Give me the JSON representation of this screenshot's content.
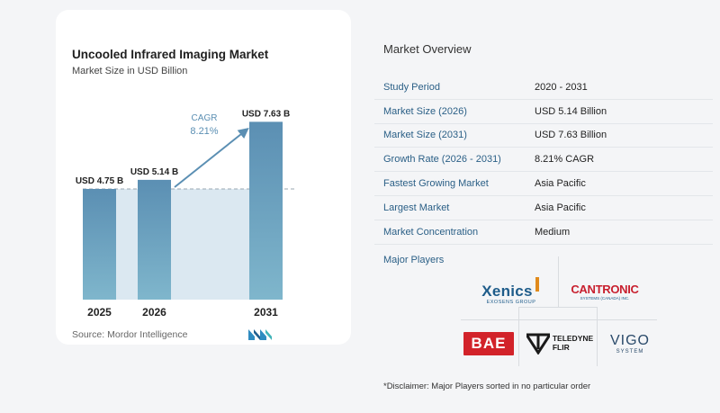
{
  "chart_data": {
    "type": "bar",
    "title": "Uncooled Infrared Imaging Market",
    "subtitle": "Market Size in USD Billion",
    "categories": [
      "2025",
      "2026",
      "2031"
    ],
    "values": [
      4.75,
      5.14,
      7.63
    ],
    "value_labels": [
      "USD 4.75 B",
      "USD 5.14 B",
      "USD 7.63 B"
    ],
    "ylim": [
      0,
      8
    ],
    "cagr_label": "CAGR",
    "cagr_value": "8.21%",
    "bar_color": "#5b8fb3",
    "bar_color_light": "#7fb6cc",
    "band_color": "#dbe8f1"
  },
  "source": {
    "label": "Source:",
    "name": "Mordor Intelligence"
  },
  "overview": {
    "title": "Market Overview",
    "rows": [
      {
        "label": "Study Period",
        "value": "2020 - 2031"
      },
      {
        "label": "Market Size (2026)",
        "value": "USD 5.14 Billion"
      },
      {
        "label": "Market Size (2031)",
        "value": "USD 7.63 Billion"
      },
      {
        "label": "Growth Rate (2026 - 2031)",
        "value": "8.21% CAGR"
      },
      {
        "label": "Fastest Growing Market",
        "value": "Asia Pacific"
      },
      {
        "label": "Largest Market",
        "value": "Asia Pacific"
      },
      {
        "label": "Market Concentration",
        "value": "Medium"
      }
    ]
  },
  "players": {
    "title": "Major Players",
    "xenics": "Xenics",
    "xenics_sub": "EXOSENS GROUP",
    "cantronic": "CANTRONIC",
    "cantronic_sub": "SYSTEMS (CANADA) INC.",
    "bae": "BAE",
    "teledyne_1": "TELEDYNE",
    "teledyne_2": "FLIR",
    "vigo": "VIGO",
    "vigo_sub": "SYSTEM"
  },
  "disclaimer": "*Disclaimer: Major Players sorted in no particular order"
}
